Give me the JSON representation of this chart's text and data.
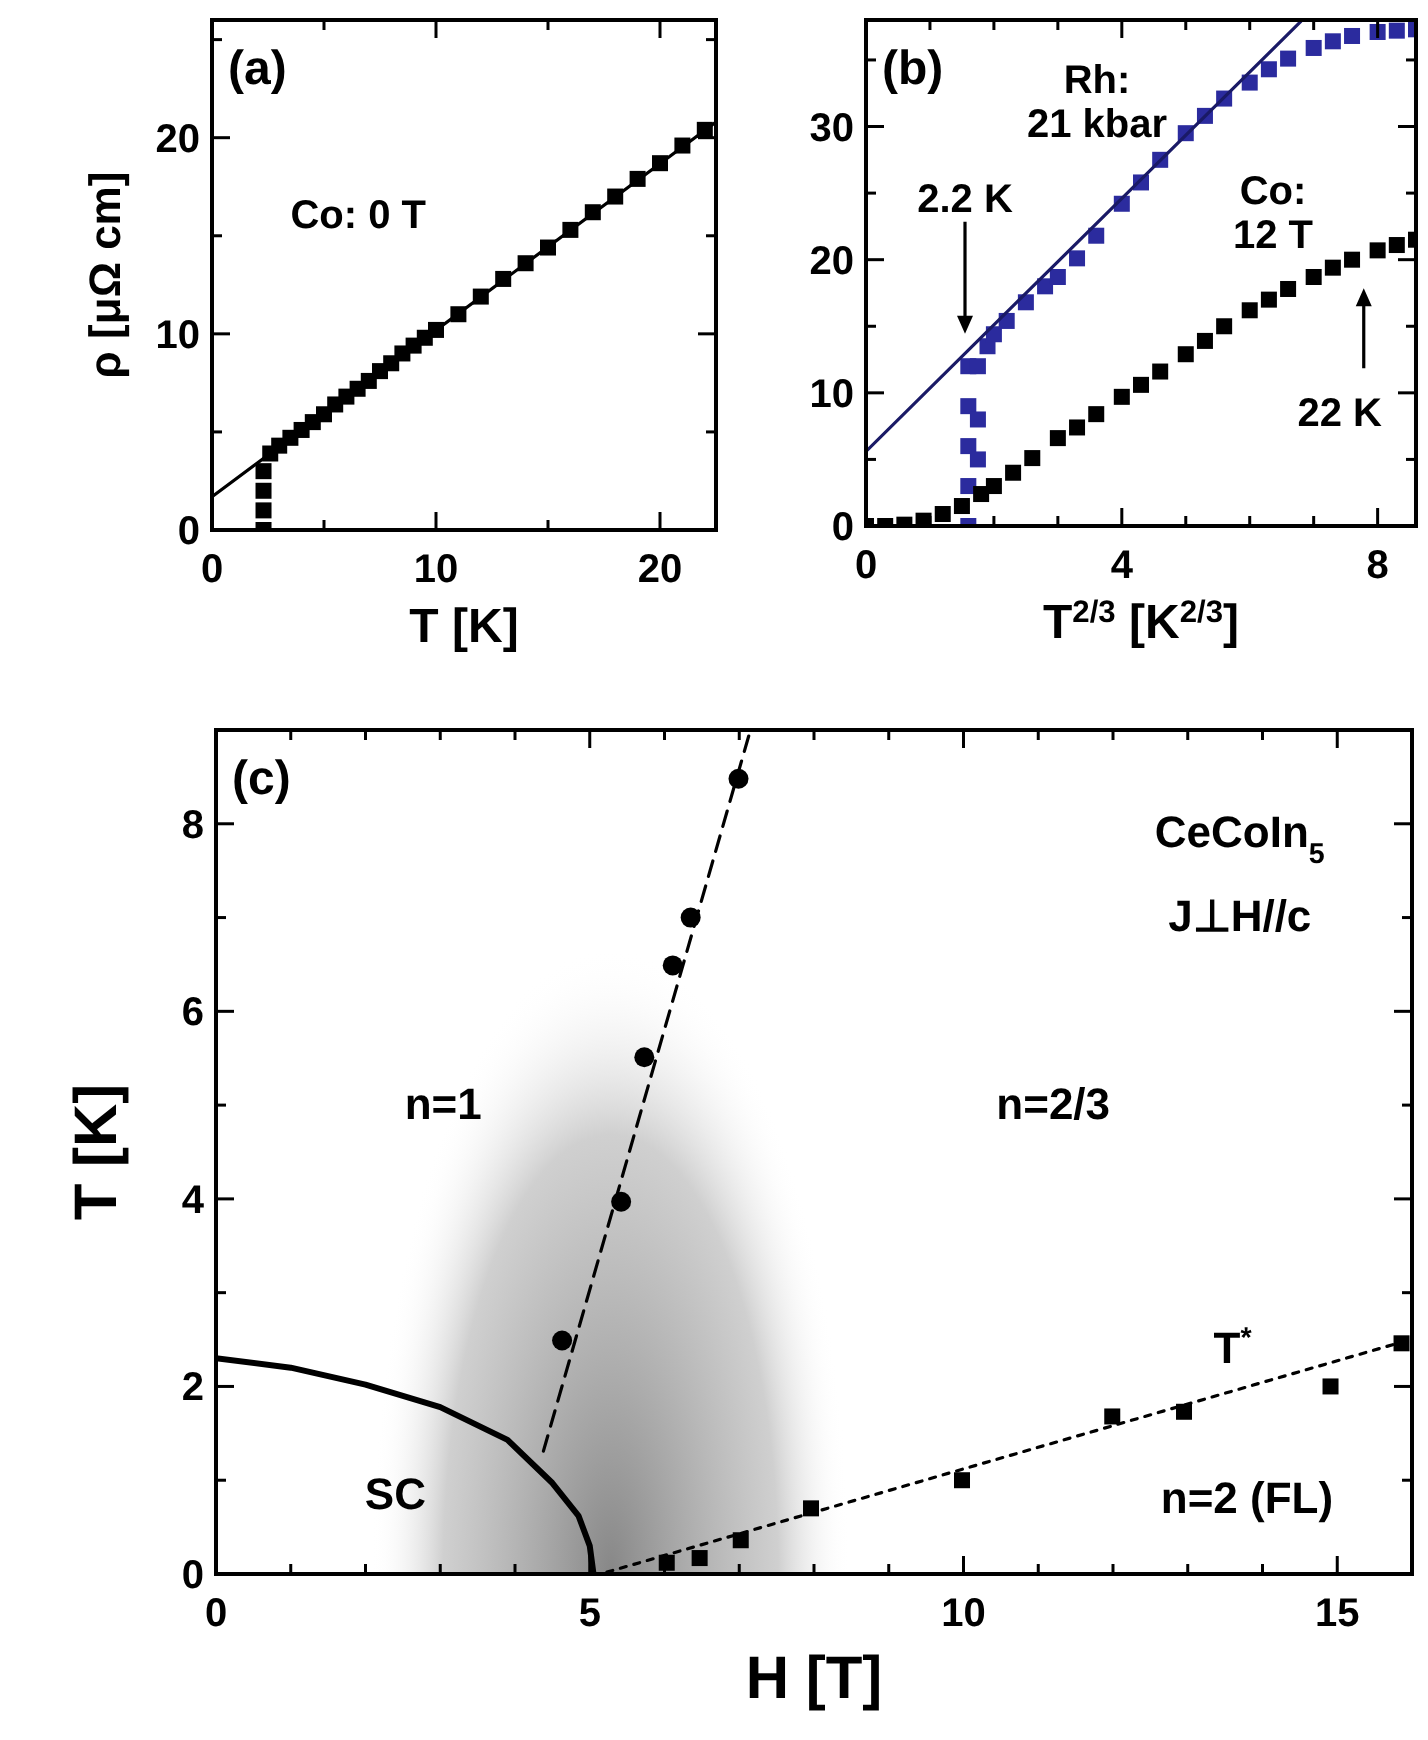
{
  "chart_data": [
    {
      "type": "scatter",
      "title": "(a)",
      "xlabel": "T [K]",
      "ylabel": "ρ [μΩ cm]",
      "xlim": [
        0,
        22.5
      ],
      "ylim": [
        0,
        26
      ],
      "xticks": [
        0,
        {
          "value": 5,
          "label": null
        },
        10,
        {
          "value": 15,
          "label": null
        },
        20
      ],
      "yticks": [
        0,
        {
          "value": 5,
          "label": null
        },
        10,
        {
          "value": 15,
          "label": null
        },
        20,
        {
          "value": 25,
          "label": null
        }
      ],
      "series": [
        {
          "type": "line",
          "color": "#000000",
          "line_style": "solid",
          "marker": "none",
          "x": [
            0,
            22.5
          ],
          "values": [
            1.7,
            20.8
          ]
        },
        {
          "type": "scatter",
          "color": "#000000",
          "marker": "square",
          "x": [
            2.3,
            2.3,
            2.3,
            2.3,
            2.6,
            3,
            3.5,
            4,
            4.5,
            5,
            5.5,
            6,
            6.5,
            7,
            7.5,
            8,
            8.5,
            9,
            9.5,
            10,
            11,
            12,
            13,
            14,
            15,
            16,
            17,
            18,
            19,
            20,
            21,
            22
          ],
          "values": [
            0,
            1,
            2,
            3,
            3.9,
            4.3,
            4.7,
            5.1,
            5.5,
            5.9,
            6.4,
            6.8,
            7.2,
            7.6,
            8.1,
            8.5,
            9,
            9.4,
            9.8,
            10.2,
            11,
            11.9,
            12.8,
            13.6,
            14.4,
            15.3,
            16.2,
            17,
            17.9,
            18.7,
            19.6,
            20.4
          ]
        }
      ],
      "annotations": [
        "Co: 0 T"
      ]
    },
    {
      "type": "scatter",
      "title": "(b)",
      "xlabel": "T$^{2/3}$ [K$^{2/3}$]",
      "xlim": [
        0,
        8.6
      ],
      "ylim": [
        0,
        38
      ],
      "xticks": [
        0,
        {
          "value": 1,
          "label": null
        },
        {
          "value": 2,
          "label": null
        },
        {
          "value": 3,
          "label": null
        },
        4,
        {
          "value": 5,
          "label": null
        },
        {
          "value": 6,
          "label": null
        },
        {
          "value": 7,
          "label": null
        },
        8
      ],
      "yticks": [
        0,
        {
          "value": 5,
          "label": null
        },
        10,
        {
          "value": 15,
          "label": null
        },
        20,
        {
          "value": 25,
          "label": null
        },
        30,
        {
          "value": 35,
          "label": null
        }
      ],
      "series": [
        {
          "type": "scatter",
          "color": "#2b2b9e",
          "marker": "square",
          "x": [
            1.6,
            1.6,
            1.6,
            1.6,
            1.6,
            1.75,
            1.75,
            1.75,
            1.9,
            2,
            2.2,
            2.5,
            2.8,
            3,
            3.3,
            3.6,
            4,
            4.3,
            4.6,
            5,
            5.3,
            5.6,
            6,
            6.3,
            6.6,
            7,
            7.3,
            7.6,
            8,
            8.3,
            8.6
          ],
          "values": [
            0,
            3,
            6,
            9,
            12,
            5,
            8,
            12,
            13.5,
            14.4,
            15.4,
            16.8,
            18,
            18.7,
            20.1,
            21.8,
            24.2,
            25.8,
            27.5,
            29.5,
            30.8,
            32.1,
            33.3,
            34.3,
            35.1,
            35.9,
            36.4,
            36.8,
            37.1,
            37.2,
            37.3
          ]
        },
        {
          "type": "line",
          "color": "#1a1a66",
          "line_style": "solid",
          "marker": "none",
          "x": [
            0,
            6.8
          ],
          "values": [
            5.6,
            37.9
          ]
        },
        {
          "type": "scatter",
          "color": "#000000",
          "marker": "square",
          "x": [
            0,
            0.3,
            0.6,
            0.9,
            1.2,
            1.5,
            1.8,
            2,
            2.3,
            2.6,
            3,
            3.3,
            3.6,
            4,
            4.3,
            4.6,
            5,
            5.3,
            5.6,
            6,
            6.3,
            6.6,
            7,
            7.3,
            7.6,
            8,
            8.3,
            8.6
          ],
          "values": [
            0,
            0,
            0.1,
            0.4,
            0.9,
            1.5,
            2.4,
            3,
            4,
            5.1,
            6.6,
            7.4,
            8.4,
            9.7,
            10.6,
            11.6,
            12.9,
            13.9,
            15,
            16.2,
            17,
            17.8,
            18.7,
            19.4,
            20,
            20.7,
            21.1,
            21.5
          ]
        }
      ],
      "annotations": [
        "Rh:\n21 kbar",
        "2.2 K",
        "Co:\n12 T",
        "22 K"
      ]
    },
    {
      "type": "scatter",
      "title": "(c)",
      "xlabel": "H [T]",
      "ylabel": "T [K]",
      "xlim": [
        0,
        16
      ],
      "ylim": [
        0,
        9
      ],
      "xticks": [
        0,
        {
          "value": 1,
          "label": null
        },
        {
          "value": 2,
          "label": null
        },
        {
          "value": 3,
          "label": null
        },
        {
          "value": 4,
          "label": null
        },
        5,
        {
          "value": 6,
          "label": null
        },
        {
          "value": 7,
          "label": null
        },
        {
          "value": 8,
          "label": null
        },
        {
          "value": 9,
          "label": null
        },
        10,
        {
          "value": 11,
          "label": null
        },
        {
          "value": 12,
          "label": null
        },
        {
          "value": 13,
          "label": null
        },
        {
          "value": 14,
          "label": null
        },
        15,
        {
          "value": 16,
          "label": null
        }
      ],
      "yticks": [
        0,
        {
          "value": 1,
          "label": null
        },
        2,
        {
          "value": 3,
          "label": null
        },
        4,
        {
          "value": 5,
          "label": null
        },
        6,
        {
          "value": 7,
          "label": null
        },
        8,
        {
          "value": 9,
          "label": null
        }
      ],
      "series": [
        {
          "type": "line",
          "color": "#000000",
          "line_style": "solid",
          "marker": "none",
          "x": [
            0,
            1,
            2,
            3,
            3.9,
            4.5,
            4.85,
            5,
            5.05
          ],
          "values": [
            2.3,
            2.2,
            2.02,
            1.78,
            1.43,
            0.97,
            0.62,
            0.3,
            0
          ]
        },
        {
          "type": "line",
          "color": "#000000",
          "line_style": "dashed",
          "marker": "none",
          "x": [
            4.38,
            7.15
          ],
          "values": [
            1.31,
            9
          ]
        },
        {
          "type": "scatter",
          "color": "#000000",
          "marker": "circle",
          "x": [
            4.63,
            5.42,
            5.73,
            6.11,
            6.35,
            6.99
          ],
          "values": [
            2.49,
            3.97,
            5.51,
            6.49,
            7,
            8.48
          ]
        },
        {
          "type": "line",
          "color": "#000000",
          "line_style": "dotted",
          "marker": "none",
          "x": [
            5.23,
            15.98
          ],
          "values": [
            0.02,
            2.5
          ]
        },
        {
          "type": "scatter",
          "color": "#000000",
          "marker": "square",
          "x": [
            6.03,
            6.47,
            7.02,
            7.96,
            9.98,
            11.99,
            12.95,
            14.91,
            15.86
          ],
          "values": [
            0.12,
            0.17,
            0.36,
            0.7,
            1,
            1.68,
            1.73,
            2,
            2.46
          ]
        }
      ],
      "annotations": [
        "CeCoIn$_{5}$",
        "J⊥H//c",
        "n=1",
        "n=2/3",
        "SC",
        "n=2 (FL)",
        "T$^{*}$"
      ]
    }
  ]
}
